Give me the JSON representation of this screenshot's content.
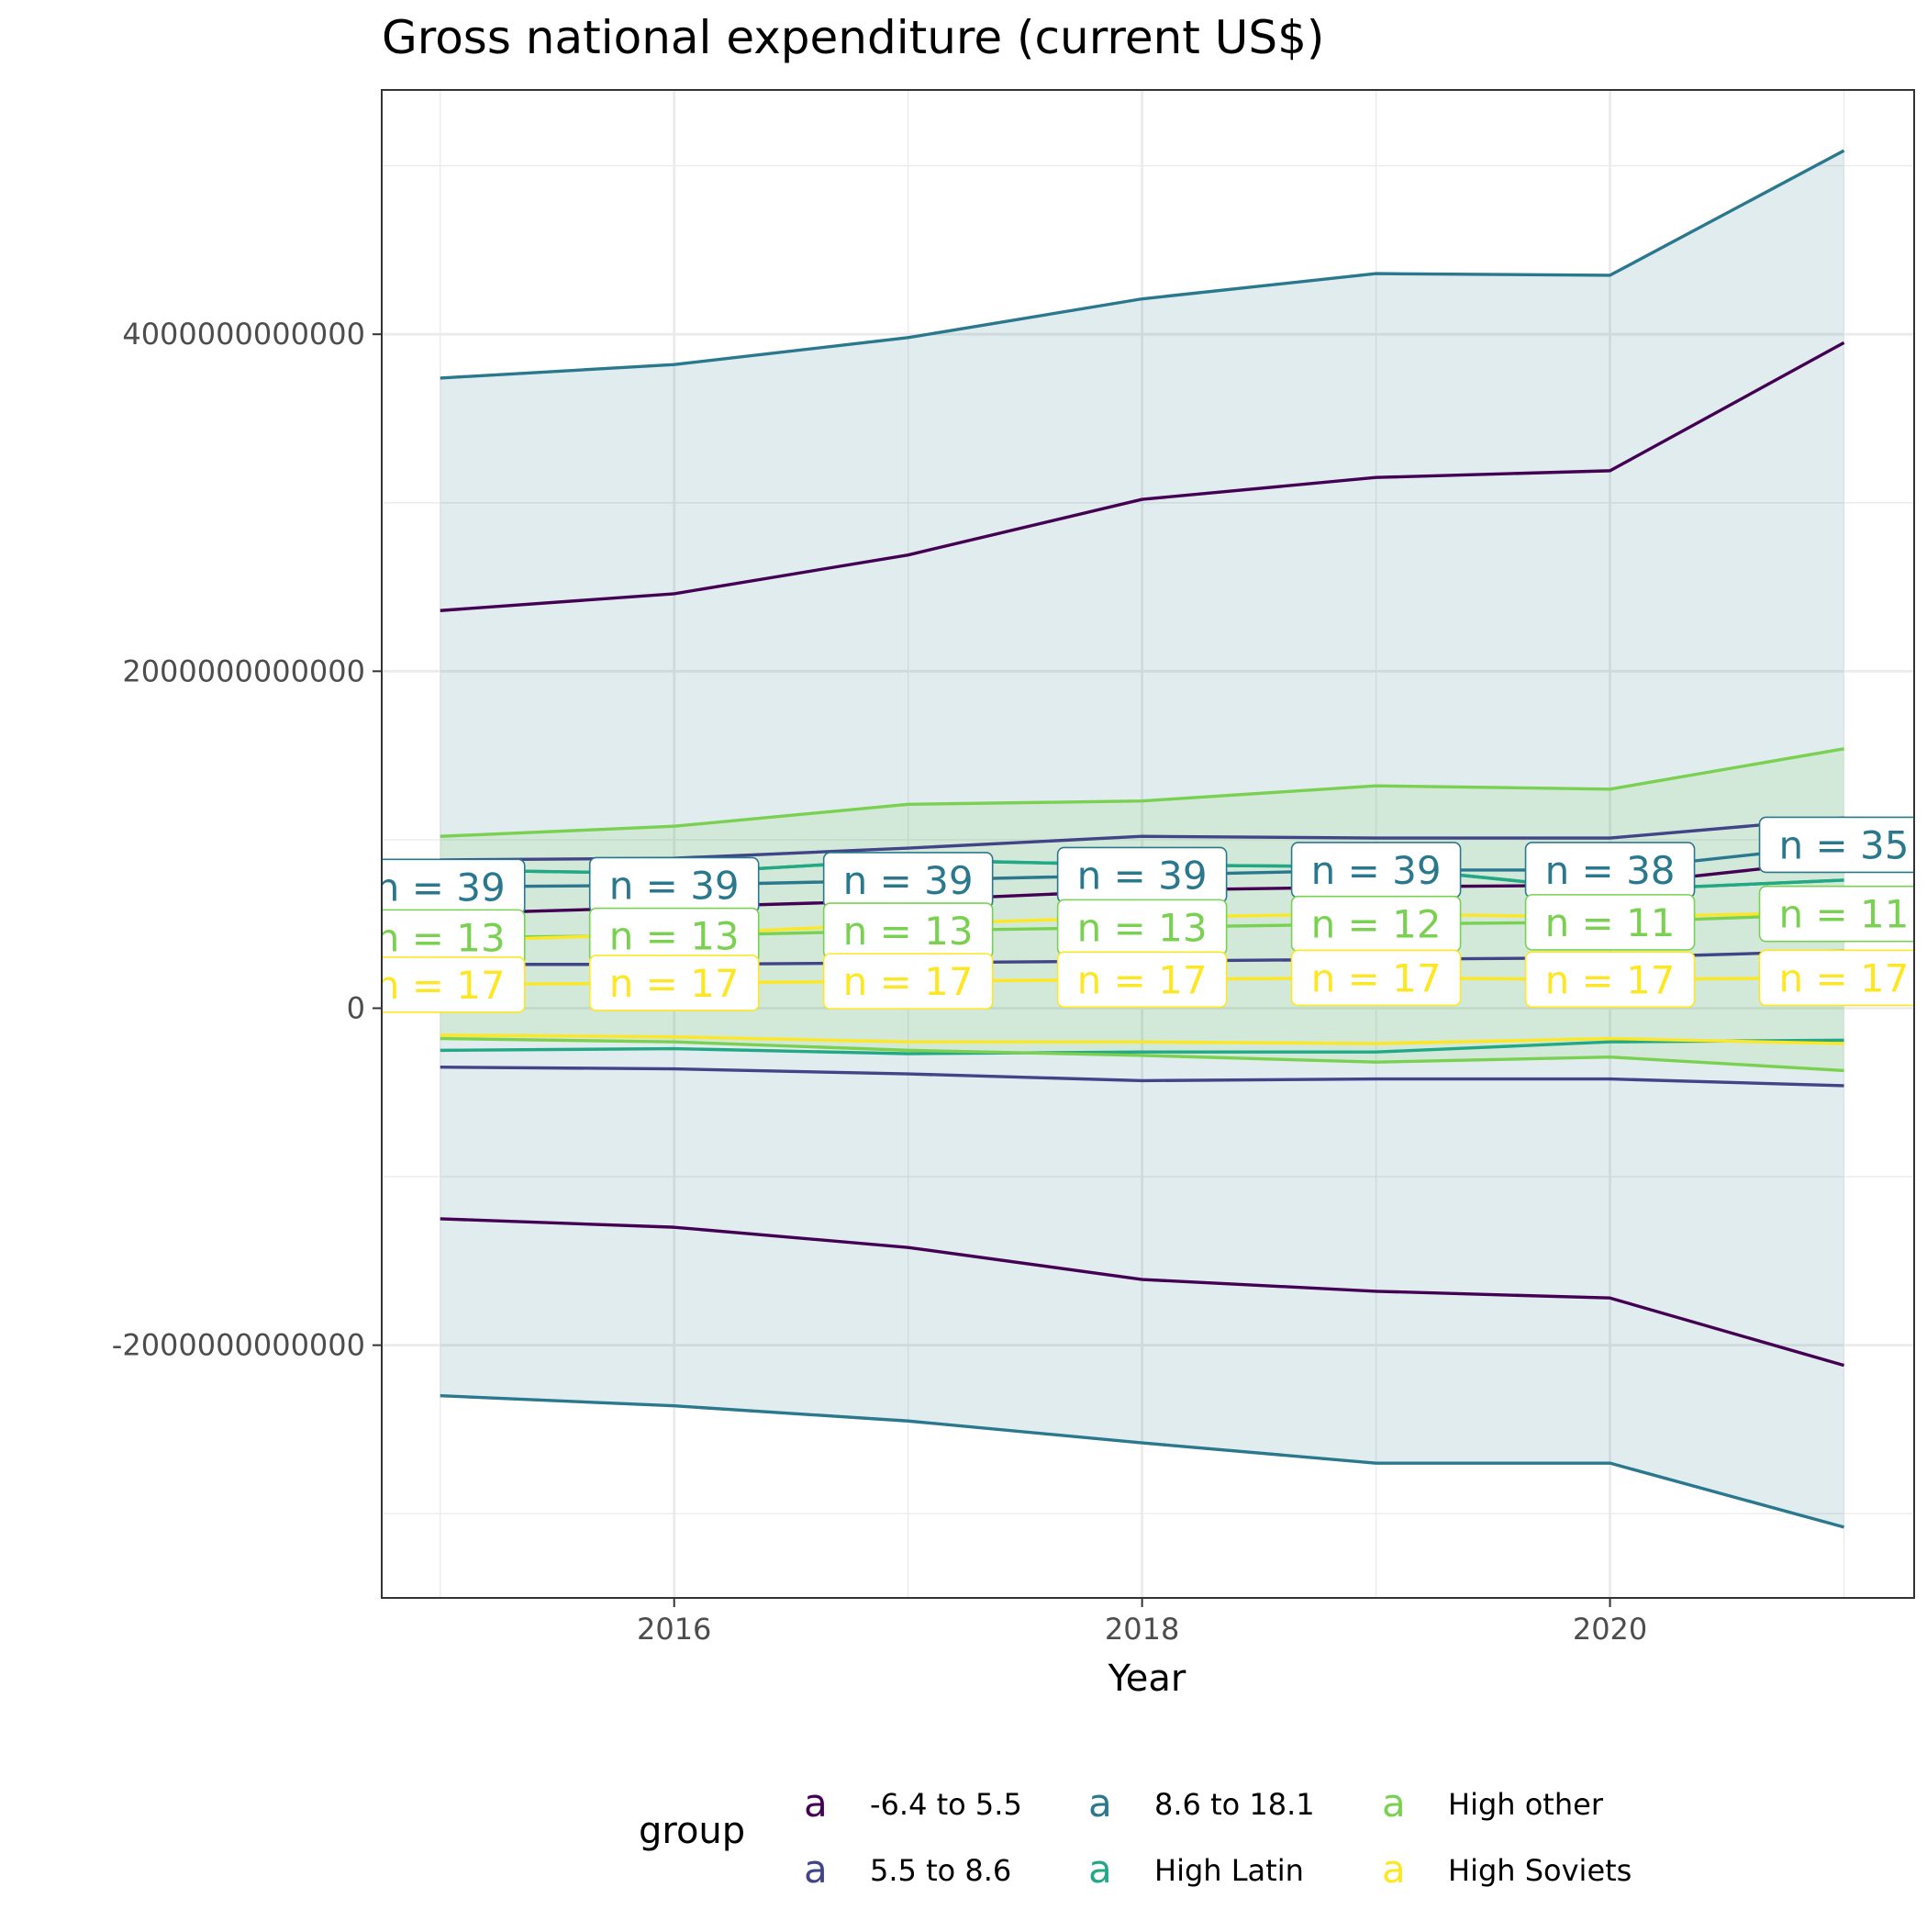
{
  "chart_data": {
    "type": "line",
    "title": "Gross national expenditure (current US$)",
    "xlabel": "Year",
    "ylabel": "",
    "x": [
      2015,
      2016,
      2017,
      2018,
      2019,
      2020,
      2021
    ],
    "xlim": [
      2014.75,
      2021.3
    ],
    "ylim": [
      -3500000000000,
      5450000000000
    ],
    "x_ticks": [
      2016,
      2018,
      2020
    ],
    "x_tick_labels": [
      "2016",
      "2018",
      "2020"
    ],
    "y_ticks": [
      -2000000000000,
      0,
      2000000000000,
      4000000000000
    ],
    "y_tick_labels": [
      "-2000000000000",
      "0",
      "2000000000000",
      "4000000000000"
    ],
    "grid": true,
    "legend": {
      "title": "group",
      "position": "bottom",
      "key_glyph": "a",
      "entries": [
        "-6.4 to 5.5",
        "5.5 to 8.6",
        "8.6 to 18.1",
        "High Latin",
        "High other",
        "High Soviets"
      ]
    },
    "series": [
      {
        "name": "-6.4 to 5.5",
        "color": "#440154",
        "mean": [
          560000000000,
          600000000000,
          640000000000,
          700000000000,
          720000000000,
          730000000000,
          880000000000
        ],
        "upper": [
          2360000000000,
          2460000000000,
          2690000000000,
          3020000000000,
          3150000000000,
          3190000000000,
          3950000000000
        ],
        "lower": [
          -1250000000000,
          -1300000000000,
          -1420000000000,
          -1610000000000,
          -1680000000000,
          -1720000000000,
          -2120000000000
        ],
        "band": false,
        "labels": []
      },
      {
        "name": "5.5 to 8.6",
        "color": "#414487",
        "mean": [
          260000000000,
          260000000000,
          270000000000,
          280000000000,
          290000000000,
          300000000000,
          340000000000
        ],
        "upper": [
          880000000000,
          890000000000,
          950000000000,
          1020000000000,
          1010000000000,
          1010000000000,
          1130000000000
        ],
        "lower": [
          -350000000000,
          -360000000000,
          -390000000000,
          -430000000000,
          -420000000000,
          -420000000000,
          -460000000000
        ],
        "band": false,
        "labels": []
      },
      {
        "name": "8.6 to 18.1",
        "color": "#2A788E",
        "mean": [
          720000000000,
          730000000000,
          760000000000,
          790000000000,
          820000000000,
          820000000000,
          970000000000
        ],
        "upper": [
          3740000000000,
          3820000000000,
          3980000000000,
          4210000000000,
          4360000000000,
          4350000000000,
          5090000000000
        ],
        "lower": [
          -2300000000000,
          -2360000000000,
          -2450000000000,
          -2580000000000,
          -2700000000000,
          -2700000000000,
          -3080000000000
        ],
        "band": true,
        "labels": [
          "n = 39",
          "n = 39",
          "n = 39",
          "n = 39",
          "n = 39",
          "n = 38",
          "n = 35"
        ]
      },
      {
        "name": "High Latin",
        "color": "#22A884",
        "mean": [
          820000000000,
          800000000000,
          880000000000,
          850000000000,
          840000000000,
          700000000000,
          760000000000
        ],
        "upper": [
          820000000000,
          800000000000,
          880000000000,
          850000000000,
          840000000000,
          700000000000,
          760000000000
        ],
        "lower": [
          -250000000000,
          -240000000000,
          -270000000000,
          -260000000000,
          -260000000000,
          -200000000000,
          -190000000000
        ],
        "band": false,
        "labels": []
      },
      {
        "name": "High other",
        "color": "#7AD151",
        "mean": [
          420000000000,
          430000000000,
          460000000000,
          480000000000,
          500000000000,
          510000000000,
          560000000000
        ],
        "upper": [
          1020000000000,
          1080000000000,
          1210000000000,
          1230000000000,
          1320000000000,
          1300000000000,
          1540000000000
        ],
        "lower": [
          -180000000000,
          -200000000000,
          -250000000000,
          -280000000000,
          -320000000000,
          -290000000000,
          -370000000000
        ],
        "band": true,
        "labels": [
          "n = 13",
          "n = 13",
          "n = 13",
          "n = 13",
          "n = 12",
          "n = 11",
          "n = 11"
        ]
      },
      {
        "name": "High Soviets",
        "color": "#FDE725",
        "mean": [
          140000000000,
          150000000000,
          160000000000,
          170000000000,
          180000000000,
          170000000000,
          180000000000
        ],
        "upper": [
          400000000000,
          440000000000,
          500000000000,
          540000000000,
          560000000000,
          540000000000,
          570000000000
        ],
        "lower": [
          -160000000000,
          -170000000000,
          -200000000000,
          -200000000000,
          -210000000000,
          -180000000000,
          -210000000000
        ],
        "band": false,
        "labels": [
          "n = 17",
          "n = 17",
          "n = 17",
          "n = 17",
          "n = 17",
          "n = 17",
          "n = 17"
        ]
      }
    ]
  }
}
